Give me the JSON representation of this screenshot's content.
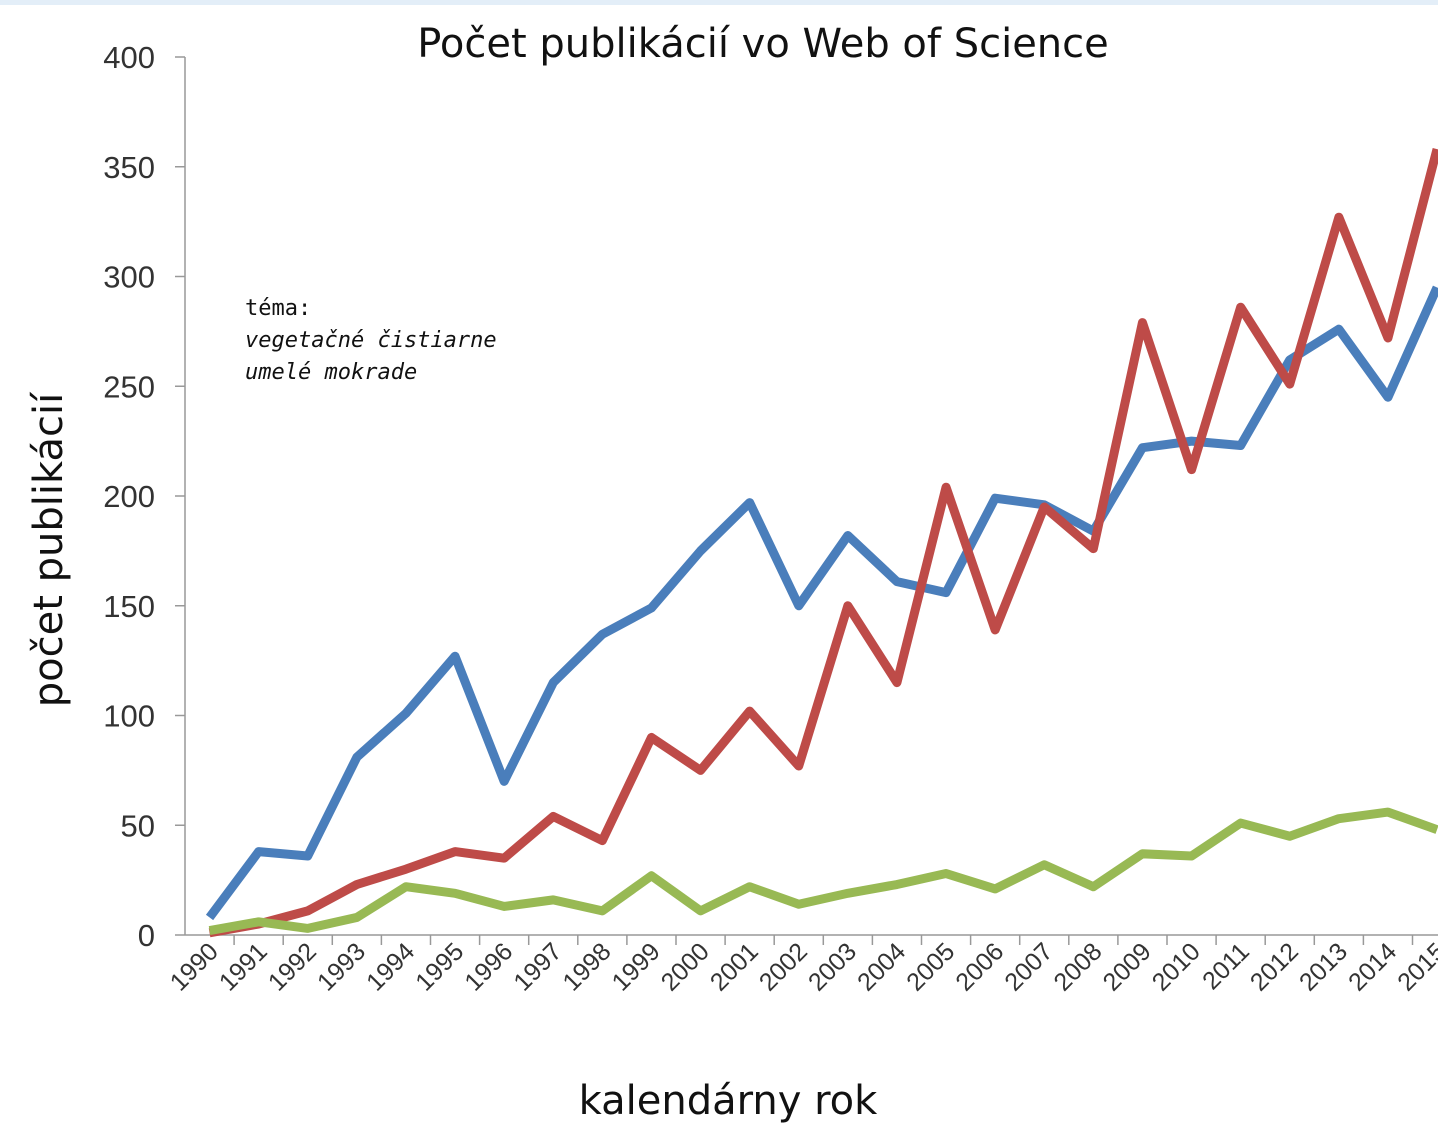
{
  "chart_data": {
    "type": "line",
    "title": "Počet publikácií vo Web of Science",
    "x_label": "kalendárny rok",
    "y_label": "počet publikácií",
    "annotation": {
      "label": "téma:",
      "lines": [
        "vegetačné čistiarne",
        "umelé mokrade"
      ]
    },
    "categories": [
      "1990",
      "1991",
      "1992",
      "1993",
      "1994",
      "1995",
      "1996",
      "1997",
      "1998",
      "1999",
      "2000",
      "2001",
      "2002",
      "2003",
      "2004",
      "2005",
      "2006",
      "2007",
      "2008",
      "2009",
      "2010",
      "2011",
      "2012",
      "2013",
      "2014",
      "2015"
    ],
    "series": [
      {
        "color": "#4a7ebb",
        "values": [
          8,
          38,
          36,
          81,
          101,
          127,
          70,
          115,
          137,
          149,
          175,
          197,
          150,
          182,
          161,
          156,
          199,
          196,
          184,
          222,
          225,
          223,
          262,
          276,
          245,
          295
        ]
      },
      {
        "color": "#be4b48",
        "values": [
          1,
          5,
          11,
          23,
          30,
          38,
          35,
          54,
          43,
          90,
          75,
          102,
          77,
          150,
          115,
          204,
          139,
          195,
          176,
          279,
          212,
          286,
          251,
          327,
          272,
          358
        ]
      },
      {
        "color": "#98b954",
        "values": [
          2,
          6,
          3,
          8,
          22,
          19,
          13,
          16,
          11,
          27,
          11,
          22,
          14,
          19,
          23,
          28,
          21,
          32,
          22,
          37,
          36,
          51,
          45,
          53,
          56,
          48
        ]
      }
    ],
    "ylim": [
      0,
      400
    ],
    "yticks": [
      0,
      50,
      100,
      150,
      200,
      250,
      300,
      350,
      400
    ],
    "grid": false
  }
}
